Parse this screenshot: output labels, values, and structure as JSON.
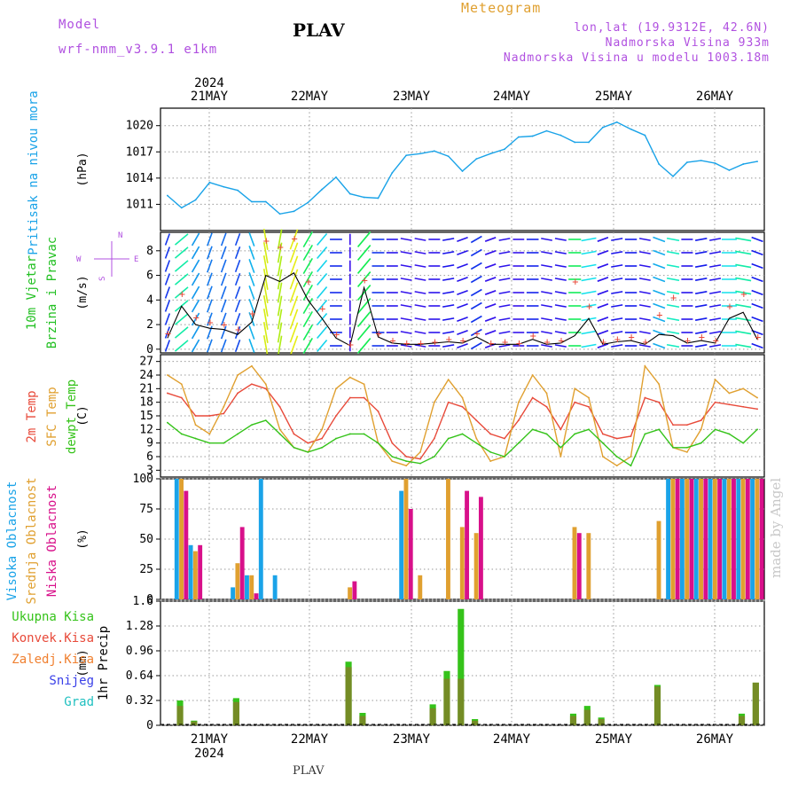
{
  "header": {
    "model_label": "Model",
    "model_name": "wrf-nmm_v3.9.1 e1km",
    "station": "PLAV",
    "product": "Meteogram",
    "lonlat": "lon,lat (19.9312E, 42.6N)",
    "elevation": "Nadmorska Visina 933m",
    "model_elevation": "Nadmorska Visina u modelu 1003.18m",
    "footer_station": "PLAV",
    "credit": "made by Angel",
    "year": "2024"
  },
  "colors": {
    "pressure": "#1aa3e8",
    "temp2m": "#e84a3a",
    "sfc": "#e0a030",
    "dewpt": "#35c31a",
    "cloud_high": "#1aa3e8",
    "cloud_mid": "#e0a030",
    "cloud_low": "#d8108a",
    "precip_total": "#35c31a",
    "precip_conv": "#e84a3a",
    "precip_strat": "#f08030",
    "snow": "#3a40e8",
    "graupel": "#20c0c0",
    "wind_label": "#22c022",
    "compass": "#b050e0"
  },
  "chart_data": [
    {
      "type": "line",
      "panel": "pressure",
      "ylabel": "Pritisak na nivou mora",
      "unit": "(hPa)",
      "ylim": [
        1008,
        1022
      ],
      "yticks": [
        1011,
        1014,
        1017,
        1020
      ],
      "xticks": [
        "21MAY",
        "22MAY",
        "23MAY",
        "24MAY",
        "25MAY",
        "26MAY"
      ],
      "grid": true,
      "x_start": "20MAY 15h",
      "step_hours": 6,
      "series": [
        {
          "values": [
            1012.0,
            1010.6,
            1011.5,
            1013.5,
            1013.0,
            1012.6,
            1011.3,
            1011.3,
            1009.9,
            1010.2,
            1011.2,
            1012.7,
            1014.1,
            1012.2,
            1011.8,
            1011.7,
            1014.6,
            1016.6,
            1016.8,
            1017.1,
            1016.5,
            1014.8,
            1016.2,
            1016.8,
            1017.3,
            1018.7,
            1018.8,
            1019.4,
            1018.9,
            1018.1,
            1018.1,
            1019.8,
            1020.4,
            1019.6,
            1018.9,
            1015.6,
            1014.2,
            1015.8,
            1016.0,
            1015.7,
            1014.9,
            1015.6,
            1015.9
          ]
        }
      ]
    },
    {
      "type": "line",
      "panel": "wind",
      "ylabel": "10m Vjetar",
      "ylabel2": "Brzina i Pravac",
      "unit": "(m/s)",
      "ylim": [
        -0.3,
        9.5
      ],
      "yticks": [
        0,
        2,
        4,
        6,
        8
      ],
      "grid": true,
      "compass": {
        "n": "N",
        "e": "E",
        "w": "W",
        "s": "S"
      },
      "series": [
        {
          "name": "speed",
          "values": [
            0.9,
            3.5,
            2.0,
            1.7,
            1.6,
            1.2,
            2.2,
            6.0,
            5.5,
            6.2,
            4.0,
            2.5,
            0.9,
            0.3,
            5.0,
            1.0,
            0.5,
            0.4,
            0.4,
            0.5,
            0.6,
            0.5,
            1.0,
            0.4,
            0.4,
            0.4,
            0.8,
            0.4,
            0.5,
            1.1,
            2.5,
            0.4,
            0.6,
            0.7,
            0.4,
            1.2,
            1.1,
            0.5,
            0.7,
            0.5,
            2.5,
            3.0,
            0.8
          ]
        },
        {
          "name": "gust",
          "values": [
            1.3,
            4.5,
            2.6,
            2.2,
            2.0,
            1.6,
            2.9,
            8.8,
            8.3,
            9.0,
            5.5,
            3.3,
            1.2,
            0.4,
            5.6,
            1.3,
            0.7,
            0.5,
            0.5,
            0.6,
            0.8,
            0.7,
            1.3,
            0.5,
            0.6,
            0.5,
            1.1,
            0.6,
            0.7,
            5.5,
            3.5,
            0.6,
            0.8,
            1.0,
            0.6,
            2.8,
            4.2,
            0.7,
            1.0,
            0.7,
            3.5,
            4.5,
            1.0
          ]
        }
      ],
      "direction_deg": [
        200,
        230,
        210,
        20,
        20,
        20,
        340,
        350,
        10,
        20,
        30,
        40,
        90,
        180,
        220,
        270,
        270,
        280,
        280,
        270,
        260,
        250,
        240,
        250,
        260,
        270,
        270,
        280,
        280,
        270,
        260,
        250,
        260,
        270,
        280,
        290,
        280,
        270,
        260,
        260,
        270,
        280,
        290
      ]
    },
    {
      "type": "line",
      "panel": "temperature",
      "ylabel": "2m Temp",
      "ylabel2": "SFC Temp",
      "ylabel3": "dewpt Temp",
      "unit": "(C)",
      "ylim": [
        1.5,
        28.5
      ],
      "yticks": [
        3,
        6,
        9,
        12,
        15,
        18,
        21,
        24,
        27
      ],
      "grid": true,
      "series": [
        {
          "name": "2m Temp",
          "values": [
            20.0,
            19.0,
            15.0,
            15.0,
            15.5,
            20.0,
            22.0,
            21.0,
            17.0,
            11.0,
            9.0,
            10.0,
            15.0,
            19.0,
            19.0,
            16.0,
            9.0,
            6.0,
            5.5,
            10.0,
            18.0,
            17.0,
            14.0,
            11.0,
            10.0,
            14.0,
            19.0,
            17.0,
            12.0,
            18.0,
            17.0,
            11.0,
            10.0,
            10.5,
            19.0,
            18.0,
            13.0,
            13.0,
            14.0,
            18.0,
            17.5,
            17.0,
            16.5
          ]
        },
        {
          "name": "SFC Temp",
          "values": [
            24.0,
            22.0,
            13.0,
            11.0,
            17.0,
            24.0,
            26.0,
            22.0,
            12.0,
            8.0,
            7.0,
            12.0,
            21.0,
            23.5,
            22.0,
            9.0,
            5.0,
            4.0,
            7.0,
            18.0,
            23.0,
            19.0,
            10.0,
            5.0,
            6.0,
            18.0,
            24.0,
            20.0,
            6.0,
            21.0,
            19.0,
            6.0,
            4.0,
            6.0,
            26.0,
            22.0,
            8.0,
            7.0,
            12.0,
            23.0,
            20.0,
            21.0,
            19.0
          ]
        },
        {
          "name": "dewpt Temp",
          "values": [
            13.5,
            11.0,
            10.0,
            9.0,
            9.0,
            11.0,
            13.0,
            14.0,
            11.0,
            8.0,
            7.0,
            8.0,
            10.0,
            11.0,
            11.0,
            9.0,
            6.0,
            5.0,
            4.5,
            6.0,
            10.0,
            11.0,
            9.0,
            7.0,
            6.0,
            9.0,
            12.0,
            11.0,
            8.0,
            11.0,
            12.0,
            9.0,
            6.0,
            4.0,
            11.0,
            12.0,
            8.0,
            8.0,
            9.0,
            12.0,
            11.0,
            9.0,
            12.0
          ]
        }
      ]
    },
    {
      "type": "bar",
      "panel": "clouds",
      "ylabel": "Visoka Oblacnost",
      "ylabel2": "Srednja Oblacnost",
      "ylabel3": "Niska Oblacnost",
      "unit": "(%)",
      "ylim": [
        0,
        100
      ],
      "yticks": [
        0,
        25,
        50,
        75,
        100
      ],
      "grid": true,
      "series": [
        {
          "name": "Visoka Oblacnost",
          "values": [
            0,
            100,
            45,
            0,
            0,
            10,
            20,
            100,
            20,
            0,
            0,
            0,
            0,
            0,
            0,
            0,
            0,
            90,
            0,
            0,
            0,
            0,
            0,
            0,
            0,
            0,
            0,
            0,
            0,
            0,
            0,
            0,
            0,
            0,
            0,
            0,
            100,
            100,
            100,
            100,
            100,
            100,
            100
          ]
        },
        {
          "name": "Srednja Oblacnost",
          "values": [
            0,
            100,
            40,
            0,
            0,
            30,
            20,
            0,
            0,
            0,
            0,
            0,
            0,
            10,
            0,
            0,
            0,
            100,
            20,
            0,
            100,
            60,
            55,
            0,
            0,
            0,
            0,
            0,
            0,
            60,
            55,
            0,
            0,
            0,
            0,
            65,
            100,
            100,
            100,
            100,
            100,
            100,
            100
          ]
        },
        {
          "name": "Niska Oblacnost",
          "values": [
            0,
            90,
            45,
            0,
            0,
            60,
            5,
            0,
            0,
            0,
            0,
            0,
            0,
            15,
            0,
            0,
            0,
            75,
            0,
            0,
            0,
            90,
            85,
            0,
            0,
            0,
            0,
            0,
            0,
            55,
            0,
            0,
            0,
            0,
            0,
            0,
            100,
            100,
            100,
            100,
            100,
            100,
            100
          ]
        }
      ]
    },
    {
      "type": "bar",
      "panel": "precip",
      "ylabel": "1hr Precip",
      "unit": "(mm)",
      "ylim": [
        0,
        1.6
      ],
      "yticks": [
        0,
        0.32,
        0.64,
        0.96,
        1.28,
        1.6
      ],
      "grid": true,
      "legend": [
        "Ukupna Kisa",
        "Konvek.Kisa",
        "Zaledj.Kisa",
        "Snijeg",
        "Grad"
      ],
      "series": [
        {
          "name": "Ukupna Kisa",
          "values": [
            0,
            0.32,
            0.06,
            0,
            0,
            0.35,
            0,
            0,
            0,
            0,
            0,
            0,
            0,
            0.82,
            0.16,
            0,
            0,
            0,
            0,
            0.27,
            0.7,
            1.5,
            0.08,
            0,
            0,
            0,
            0,
            0,
            0,
            0.15,
            0.25,
            0.1,
            0,
            0,
            0,
            0.52,
            0,
            0,
            0,
            0,
            0,
            0.15,
            0.55
          ]
        },
        {
          "name": "Konvek.Kisa",
          "values": [
            0,
            0.25,
            0.05,
            0,
            0,
            0.3,
            0,
            0,
            0,
            0,
            0,
            0,
            0,
            0.75,
            0.12,
            0,
            0,
            0,
            0,
            0.22,
            0.6,
            0.6,
            0.06,
            0,
            0,
            0,
            0,
            0,
            0,
            0.12,
            0.2,
            0.08,
            0,
            0,
            0,
            0.5,
            0,
            0,
            0,
            0,
            0,
            0.12,
            0.55
          ]
        }
      ]
    }
  ]
}
